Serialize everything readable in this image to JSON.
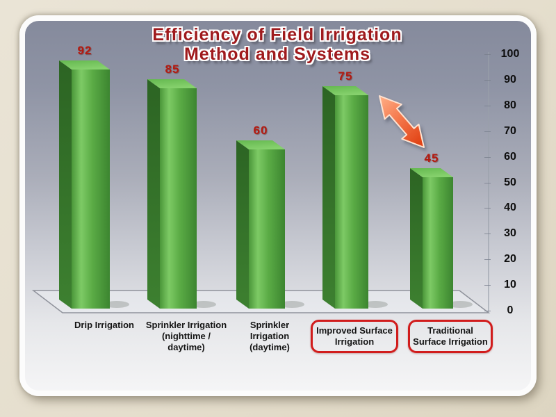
{
  "slide": {
    "title_line1": "Efficiency of Field Irrigation",
    "title_line2": "Method and Systems"
  },
  "chart_data": {
    "type": "bar",
    "title": "Efficiency of Field Irrigation Method and Systems",
    "categories": [
      "Drip Irrigation",
      "Sprinkler Irrigation (nighttime / daytime)",
      "Sprinkler Irrigation (daytime)",
      "Improved Surface Irrigation",
      "Traditional Surface Irrigation"
    ],
    "values": [
      92,
      85,
      60,
      75,
      45
    ],
    "xlabel": "",
    "ylabel": "",
    "ylim": [
      0,
      100
    ],
    "ytick_step": 10,
    "yticks": [
      0,
      10,
      20,
      30,
      40,
      50,
      60,
      70,
      80,
      90,
      100
    ],
    "yaxis_side": "right",
    "grid": false,
    "legend": "none",
    "style": "3d-perspective-bars",
    "highlighted_category_indexes": [
      3,
      4
    ],
    "annotations": [
      {
        "type": "double-headed-arrow",
        "between": [
          "Improved Surface Irrigation",
          "Traditional Surface Irrigation"
        ],
        "color": "#e64413"
      }
    ],
    "colors": {
      "bar_front": "#5aab45",
      "bar_side": "#2d6a24",
      "bar_top": "#74c55c",
      "value_label": "#b41a10",
      "title_text": "#9f1a1d",
      "highlight_box_border": "#d11c1c",
      "arrow": "#e64413",
      "axis_text": "#0d0d0d",
      "slide_background_top": "#858a9c",
      "slide_background_bottom": "#f5f5f6",
      "frame_background": "#e5decd"
    }
  }
}
